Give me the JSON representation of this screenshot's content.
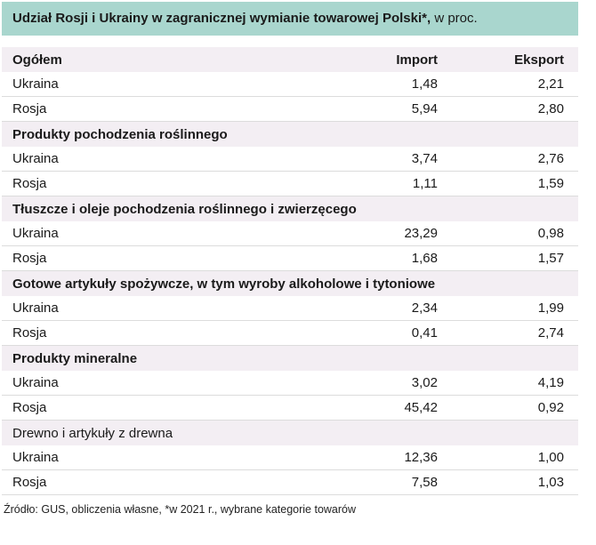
{
  "chart_data": {
    "type": "table",
    "title": "Udział Rosji i Ukrainy w zagranicznej wymianie towarowej Polski*, w proc.",
    "title_bold": "Udział Rosji i Ukrainy w zagranicznej wymianie towarowej Polski*,",
    "title_suffix": " w proc.",
    "columns": {
      "import": "Import",
      "eksport": "Eksport"
    },
    "sections": [
      {
        "title": "Ogółem",
        "rows": [
          {
            "label": "Ukraina",
            "import": "1,48",
            "eksport": "2,21"
          },
          {
            "label": "Rosja",
            "import": "5,94",
            "eksport": "2,80"
          }
        ]
      },
      {
        "title": "Produkty pochodzenia roślinnego",
        "rows": [
          {
            "label": "Ukraina",
            "import": "3,74",
            "eksport": "2,76"
          },
          {
            "label": "Rosja",
            "import": "1,11",
            "eksport": "1,59"
          }
        ]
      },
      {
        "title": "Tłuszcze i oleje pochodzenia roślinnego i zwierzęcego",
        "rows": [
          {
            "label": "Ukraina",
            "import": "23,29",
            "eksport": "0,98"
          },
          {
            "label": "Rosja",
            "import": "1,68",
            "eksport": "1,57"
          }
        ]
      },
      {
        "title": "Gotowe artykuły spożywcze, w tym wyroby alkoholowe i tytoniowe",
        "rows": [
          {
            "label": "Ukraina",
            "import": "2,34",
            "eksport": "1,99"
          },
          {
            "label": "Rosja",
            "import": "0,41",
            "eksport": "2,74"
          }
        ]
      },
      {
        "title": "Produkty mineralne",
        "rows": [
          {
            "label": "Ukraina",
            "import": "3,02",
            "eksport": "4,19"
          },
          {
            "label": "Rosja",
            "import": "45,42",
            "eksport": "0,92"
          }
        ]
      },
      {
        "title": "Drewno i artykuły z drewna",
        "rows": [
          {
            "label": "Ukraina",
            "import": "12,36",
            "eksport": "1,00"
          },
          {
            "label": "Rosja",
            "import": "7,58",
            "eksport": "1,03"
          }
        ]
      }
    ],
    "source": "Źródło: GUS, obliczenia własne, *w 2021 r., wybrane kategorie towarów"
  },
  "colors": {
    "header_bg": "#a9d6ce",
    "section_bg": "#f3eef3",
    "row_border": "#dcdcdc"
  }
}
